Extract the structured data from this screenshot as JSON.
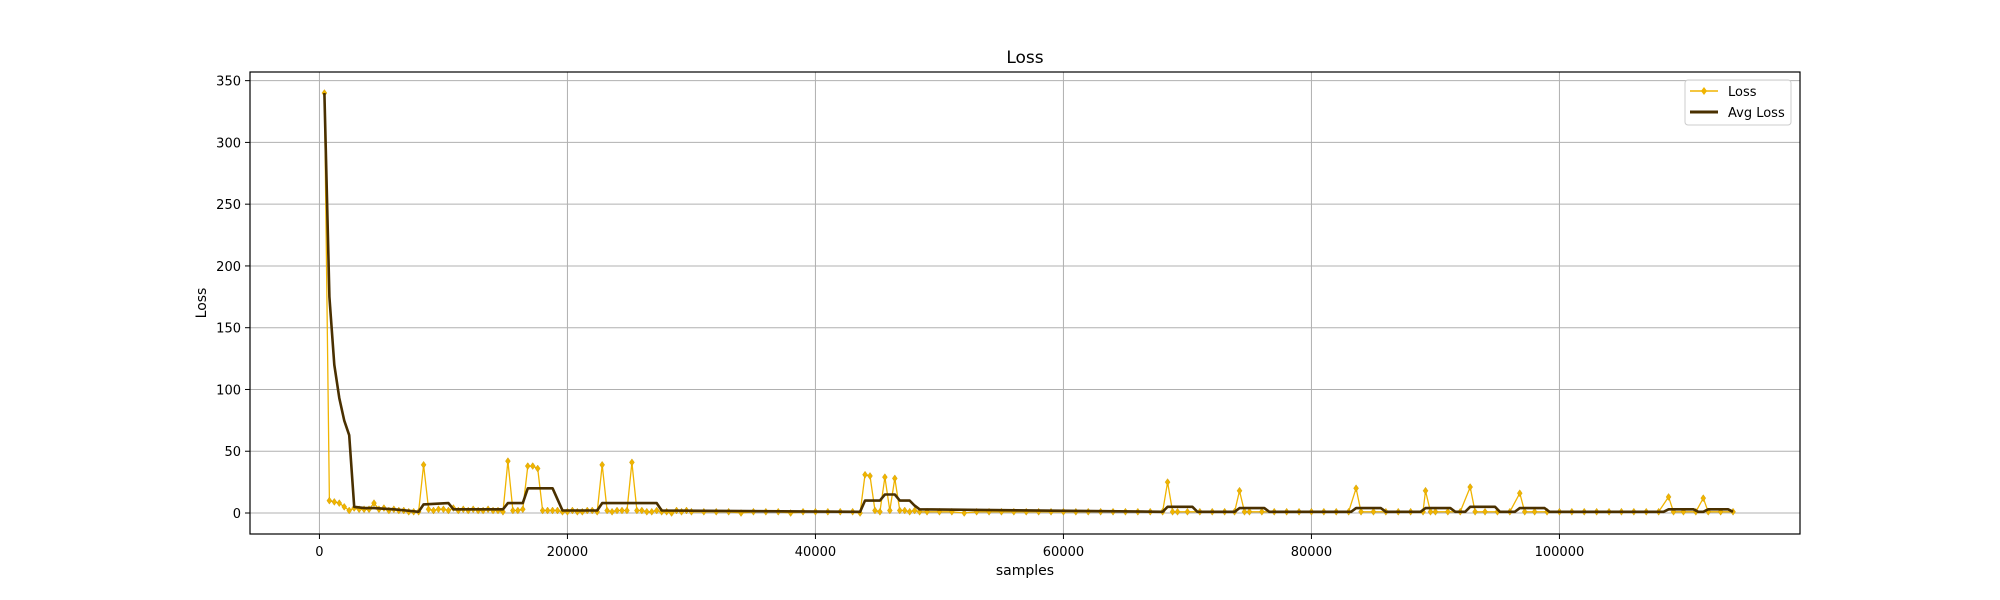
{
  "chart_data": {
    "type": "line",
    "title": "Loss",
    "xlabel": "samples",
    "ylabel": "Loss",
    "xlim": [
      -5600,
      119400
    ],
    "ylim": [
      -17,
      357
    ],
    "xticks": [
      0,
      20000,
      40000,
      60000,
      80000,
      100000
    ],
    "xtick_labels": [
      "0",
      "20000",
      "40000",
      "60000",
      "80000",
      "100000"
    ],
    "yticks": [
      0,
      50,
      100,
      150,
      200,
      250,
      300,
      350
    ],
    "ytick_labels": [
      "0",
      "50",
      "100",
      "150",
      "200",
      "250",
      "300",
      "350"
    ],
    "grid": true,
    "legend_position": "top-right",
    "series": [
      {
        "name": "Loss",
        "color": "#f0b400",
        "marker": "diamond",
        "points": [
          [
            400,
            340
          ],
          [
            800,
            10
          ],
          [
            1200,
            9
          ],
          [
            1600,
            8
          ],
          [
            2000,
            5
          ],
          [
            2400,
            2
          ],
          [
            2800,
            4
          ],
          [
            3200,
            3
          ],
          [
            3600,
            3
          ],
          [
            4000,
            3
          ],
          [
            4400,
            8
          ],
          [
            4800,
            3
          ],
          [
            5200,
            4
          ],
          [
            5600,
            2
          ],
          [
            6000,
            3
          ],
          [
            6400,
            2
          ],
          [
            6800,
            2
          ],
          [
            7200,
            1
          ],
          [
            7600,
            1
          ],
          [
            8000,
            1
          ],
          [
            8400,
            39
          ],
          [
            8800,
            3
          ],
          [
            9200,
            2
          ],
          [
            9600,
            3
          ],
          [
            10000,
            3
          ],
          [
            10400,
            2
          ],
          [
            10800,
            4
          ],
          [
            11200,
            2
          ],
          [
            11600,
            3
          ],
          [
            12000,
            2
          ],
          [
            12400,
            3
          ],
          [
            12800,
            2
          ],
          [
            13200,
            2
          ],
          [
            13600,
            3
          ],
          [
            14000,
            2
          ],
          [
            14400,
            2
          ],
          [
            14800,
            1
          ],
          [
            15200,
            42
          ],
          [
            15600,
            2
          ],
          [
            16000,
            2
          ],
          [
            16400,
            3
          ],
          [
            16800,
            38
          ],
          [
            17200,
            38
          ],
          [
            17600,
            36
          ],
          [
            18000,
            2
          ],
          [
            18400,
            2
          ],
          [
            18800,
            2
          ],
          [
            19200,
            2
          ],
          [
            19600,
            1
          ],
          [
            20000,
            1
          ],
          [
            20400,
            2
          ],
          [
            20800,
            1
          ],
          [
            21200,
            1
          ],
          [
            21600,
            2
          ],
          [
            22000,
            2
          ],
          [
            22400,
            1
          ],
          [
            22800,
            39
          ],
          [
            23200,
            2
          ],
          [
            23600,
            1
          ],
          [
            24000,
            2
          ],
          [
            24400,
            2
          ],
          [
            24800,
            2
          ],
          [
            25200,
            41
          ],
          [
            25600,
            2
          ],
          [
            26000,
            2
          ],
          [
            26400,
            1
          ],
          [
            26800,
            1
          ],
          [
            27200,
            2
          ],
          [
            27600,
            1
          ],
          [
            28000,
            1
          ],
          [
            28400,
            0
          ],
          [
            28800,
            2
          ],
          [
            29200,
            1
          ],
          [
            29600,
            2
          ],
          [
            30000,
            1
          ],
          [
            31000,
            1
          ],
          [
            32000,
            1
          ],
          [
            33000,
            1
          ],
          [
            34000,
            0
          ],
          [
            35000,
            1
          ],
          [
            36000,
            1
          ],
          [
            37000,
            1
          ],
          [
            38000,
            0
          ],
          [
            39000,
            1
          ],
          [
            40000,
            1
          ],
          [
            41000,
            1
          ],
          [
            42000,
            1
          ],
          [
            43000,
            1
          ],
          [
            43600,
            0
          ],
          [
            44000,
            31
          ],
          [
            44400,
            30
          ],
          [
            44800,
            2
          ],
          [
            45200,
            1
          ],
          [
            45600,
            29
          ],
          [
            46000,
            2
          ],
          [
            46400,
            28
          ],
          [
            46800,
            2
          ],
          [
            47200,
            2
          ],
          [
            47600,
            1
          ],
          [
            48000,
            2
          ],
          [
            48400,
            1
          ],
          [
            49000,
            1
          ],
          [
            50000,
            1
          ],
          [
            51000,
            1
          ],
          [
            52000,
            0
          ],
          [
            53000,
            1
          ],
          [
            54000,
            1
          ],
          [
            55000,
            1
          ],
          [
            56000,
            1
          ],
          [
            57000,
            1
          ],
          [
            58000,
            1
          ],
          [
            59000,
            1
          ],
          [
            60000,
            1
          ],
          [
            61000,
            1
          ],
          [
            62000,
            1
          ],
          [
            63000,
            1
          ],
          [
            64000,
            1
          ],
          [
            65000,
            1
          ],
          [
            66000,
            1
          ],
          [
            67000,
            1
          ],
          [
            68000,
            1
          ],
          [
            68400,
            25
          ],
          [
            68800,
            1
          ],
          [
            69200,
            1
          ],
          [
            70000,
            1
          ],
          [
            71000,
            1
          ],
          [
            72000,
            1
          ],
          [
            73000,
            1
          ],
          [
            73800,
            1
          ],
          [
            74200,
            18
          ],
          [
            74600,
            1
          ],
          [
            75000,
            1
          ],
          [
            76000,
            1
          ],
          [
            77000,
            1
          ],
          [
            78000,
            1
          ],
          [
            79000,
            1
          ],
          [
            80000,
            1
          ],
          [
            81000,
            1
          ],
          [
            82000,
            1
          ],
          [
            83000,
            1
          ],
          [
            83600,
            20
          ],
          [
            84000,
            1
          ],
          [
            85000,
            1
          ],
          [
            86000,
            1
          ],
          [
            87000,
            1
          ],
          [
            88000,
            1
          ],
          [
            89000,
            1
          ],
          [
            89200,
            18
          ],
          [
            89600,
            1
          ],
          [
            90000,
            1
          ],
          [
            91000,
            1
          ],
          [
            92000,
            1
          ],
          [
            92800,
            21
          ],
          [
            93200,
            1
          ],
          [
            94000,
            1
          ],
          [
            95000,
            1
          ],
          [
            96000,
            1
          ],
          [
            96800,
            16
          ],
          [
            97200,
            1
          ],
          [
            98000,
            1
          ],
          [
            99000,
            1
          ],
          [
            100000,
            1
          ],
          [
            101000,
            1
          ],
          [
            102000,
            1
          ],
          [
            103000,
            1
          ],
          [
            104000,
            1
          ],
          [
            105000,
            1
          ],
          [
            106000,
            1
          ],
          [
            107000,
            1
          ],
          [
            108000,
            1
          ],
          [
            108800,
            13
          ],
          [
            109200,
            1
          ],
          [
            110000,
            1
          ],
          [
            111000,
            1
          ],
          [
            111600,
            12
          ],
          [
            112000,
            1
          ],
          [
            113000,
            1
          ],
          [
            114000,
            1
          ]
        ]
      },
      {
        "name": "Avg Loss",
        "color": "#4a3000",
        "marker": "none",
        "points": [
          [
            400,
            340
          ],
          [
            800,
            175
          ],
          [
            1200,
            120
          ],
          [
            1600,
            93
          ],
          [
            2000,
            75
          ],
          [
            2400,
            63
          ],
          [
            2800,
            5
          ],
          [
            3600,
            4
          ],
          [
            4400,
            4
          ],
          [
            6000,
            3
          ],
          [
            7000,
            2
          ],
          [
            8000,
            1
          ],
          [
            8400,
            7
          ],
          [
            10400,
            8
          ],
          [
            10800,
            3
          ],
          [
            14800,
            3
          ],
          [
            15200,
            8
          ],
          [
            16400,
            8
          ],
          [
            16800,
            20
          ],
          [
            18800,
            20
          ],
          [
            19600,
            2
          ],
          [
            22400,
            2
          ],
          [
            22800,
            8
          ],
          [
            27200,
            8
          ],
          [
            27600,
            2
          ],
          [
            43600,
            1
          ],
          [
            44000,
            10
          ],
          [
            45200,
            10
          ],
          [
            45600,
            15
          ],
          [
            46400,
            15
          ],
          [
            46800,
            10
          ],
          [
            47600,
            10
          ],
          [
            48000,
            6
          ],
          [
            48400,
            3
          ],
          [
            68000,
            1
          ],
          [
            68400,
            5
          ],
          [
            70400,
            5
          ],
          [
            70800,
            1
          ],
          [
            73800,
            1
          ],
          [
            74200,
            4
          ],
          [
            76200,
            4
          ],
          [
            76600,
            1
          ],
          [
            83200,
            1
          ],
          [
            83600,
            4
          ],
          [
            85600,
            4
          ],
          [
            86000,
            1
          ],
          [
            88800,
            1
          ],
          [
            89200,
            4
          ],
          [
            91200,
            4
          ],
          [
            91600,
            1
          ],
          [
            92400,
            1
          ],
          [
            92800,
            5
          ],
          [
            94800,
            5
          ],
          [
            95200,
            1
          ],
          [
            96400,
            1
          ],
          [
            96800,
            4
          ],
          [
            98800,
            4
          ],
          [
            99200,
            1
          ],
          [
            108400,
            1
          ],
          [
            108800,
            3
          ],
          [
            110800,
            3
          ],
          [
            111200,
            1
          ],
          [
            111600,
            1
          ],
          [
            112000,
            3
          ],
          [
            113600,
            3
          ],
          [
            114000,
            1
          ]
        ]
      }
    ]
  }
}
